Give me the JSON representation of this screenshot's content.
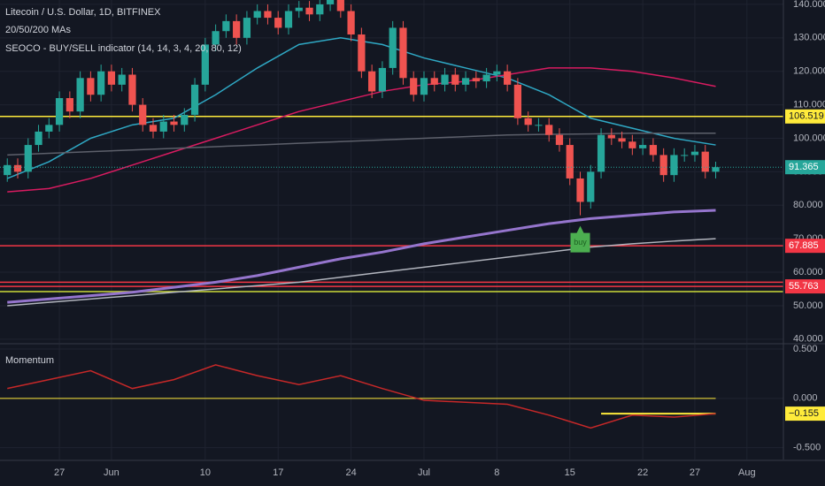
{
  "chart_data": [
    {
      "type": "candlestick",
      "title": "Litecoin / U.S. Dollar, 1D, BITFINEX",
      "indicators": [
        "20/50/200 MAs",
        "SEOCO - BUY/SELL indicator (14, 14, 3, 4, 20, 80, 12)"
      ],
      "x": [
        0,
        1,
        2,
        3,
        4,
        5,
        6,
        7,
        8,
        9,
        10,
        11,
        12,
        13,
        14,
        15,
        16,
        17,
        18,
        19,
        20,
        21,
        22,
        23,
        24,
        25,
        26,
        27,
        28,
        29,
        30,
        31,
        32,
        33,
        34,
        35,
        36,
        37,
        38,
        39,
        40,
        41,
        42,
        43,
        44,
        45,
        46,
        47,
        48,
        49,
        50,
        51,
        52,
        53,
        54,
        55,
        56,
        57,
        58,
        59,
        60,
        61,
        62,
        63,
        64,
        65,
        66,
        67,
        68
      ],
      "open": [
        89,
        92,
        90,
        98,
        102,
        104,
        112,
        108,
        118,
        113,
        120,
        116,
        119,
        110,
        104,
        102,
        105,
        104,
        107,
        116,
        128,
        132,
        135,
        130,
        136,
        138,
        136,
        133,
        138,
        139,
        137,
        140,
        142,
        138,
        131,
        120,
        114,
        121,
        133,
        118,
        113,
        118,
        116,
        119,
        116,
        118,
        117,
        119,
        120,
        116,
        106,
        104,
        104,
        101,
        98,
        88,
        81,
        90,
        101,
        100,
        99,
        97,
        98,
        95,
        89,
        95,
        95,
        96,
        90
      ],
      "high": [
        94,
        94,
        100,
        104,
        106,
        114,
        114,
        120,
        120,
        122,
        122,
        121,
        121,
        112,
        106,
        107,
        107,
        109,
        118,
        130,
        134,
        137,
        137,
        138,
        140,
        140,
        138,
        140,
        141,
        141,
        142,
        144,
        144,
        140,
        133,
        122,
        123,
        135,
        135,
        120,
        120,
        120,
        121,
        121,
        120,
        120,
        121,
        122,
        122,
        118,
        108,
        106,
        106,
        103,
        100,
        90,
        92,
        103,
        103,
        102,
        101,
        100,
        100,
        97,
        97,
        97,
        98,
        98,
        93
      ],
      "low": [
        87,
        88,
        88,
        96,
        100,
        102,
        106,
        106,
        111,
        111,
        114,
        114,
        108,
        102,
        100,
        100,
        102,
        102,
        105,
        114,
        126,
        130,
        128,
        128,
        134,
        134,
        131,
        131,
        136,
        135,
        135,
        138,
        136,
        129,
        118,
        112,
        112,
        119,
        116,
        111,
        111,
        114,
        114,
        114,
        114,
        115,
        115,
        117,
        114,
        104,
        102,
        102,
        99,
        96,
        86,
        77,
        79,
        88,
        98,
        97,
        95,
        95,
        93,
        87,
        87,
        93,
        93,
        88,
        88
      ],
      "close": [
        92,
        90,
        98,
        102,
        104,
        112,
        108,
        118,
        113,
        120,
        116,
        119,
        110,
        104,
        102,
        105,
        104,
        107,
        116,
        128,
        132,
        135,
        130,
        136,
        138,
        136,
        133,
        138,
        139,
        137,
        140,
        142,
        138,
        131,
        120,
        114,
        121,
        133,
        118,
        113,
        118,
        116,
        119,
        116,
        118,
        117,
        119,
        120,
        116,
        106,
        104,
        104,
        101,
        98,
        88,
        81,
        90,
        101,
        100,
        99,
        97,
        98,
        95,
        89,
        95,
        95,
        96,
        90,
        91.365
      ],
      "up_color": "#26a69a",
      "down_color": "#ef5350",
      "xlim": [
        -0.7,
        74.5
      ],
      "xticks": [
        {
          "value": 5,
          "label": "27"
        },
        {
          "value": 10,
          "label": "Jun"
        },
        {
          "value": 19,
          "label": "10"
        },
        {
          "value": 26,
          "label": "17"
        },
        {
          "value": 33,
          "label": "24"
        },
        {
          "value": 40,
          "label": "Jul"
        },
        {
          "value": 47,
          "label": "8"
        },
        {
          "value": 54,
          "label": "15"
        },
        {
          "value": 61,
          "label": "22"
        },
        {
          "value": 66,
          "label": "27"
        },
        {
          "value": 71,
          "label": "Aug"
        }
      ],
      "ylim": [
        38.9,
        141.3
      ],
      "yticks": [
        {
          "value": 40,
          "label": "40.000"
        },
        {
          "value": 50,
          "label": "50.000"
        },
        {
          "value": 60,
          "label": "60.000"
        },
        {
          "value": 70,
          "label": "70.000"
        },
        {
          "value": 80,
          "label": "80.000"
        },
        {
          "value": 90,
          "label": "90.000"
        },
        {
          "value": 100,
          "label": "100.000"
        },
        {
          "value": 110,
          "label": "110.000"
        },
        {
          "value": 120,
          "label": "120.000"
        },
        {
          "value": 130,
          "label": "130.000"
        },
        {
          "value": 140,
          "label": "140.000"
        }
      ],
      "lines": [
        {
          "color": "#2fa8c4",
          "x": [
            0,
            4,
            8,
            12,
            16,
            20,
            24,
            28,
            32,
            36,
            40,
            44,
            48,
            52,
            56,
            60,
            64,
            68
          ],
          "values": [
            88,
            93,
            100,
            104,
            106,
            113,
            121,
            128,
            130,
            128,
            124,
            121,
            118,
            113,
            106,
            103,
            100,
            98
          ]
        },
        {
          "color": "#d81b60",
          "x": [
            0,
            4,
            8,
            12,
            16,
            20,
            24,
            28,
            32,
            36,
            40,
            44,
            48,
            52,
            56,
            60,
            64,
            68
          ],
          "values": [
            84,
            85,
            88,
            92,
            96,
            100,
            104,
            108,
            111,
            114,
            116,
            117,
            119,
            121,
            121,
            120,
            118,
            115.5
          ]
        },
        {
          "color": "#5d606b",
          "x": [
            0,
            4,
            8,
            12,
            16,
            20,
            24,
            28,
            32,
            36,
            40,
            44,
            48,
            52,
            56,
            60,
            64,
            68
          ],
          "values": [
            95,
            95.5,
            96,
            96.5,
            97,
            97.5,
            98,
            98.5,
            99,
            99.5,
            100,
            100.5,
            101,
            101.2,
            101.3,
            101.5,
            101.5,
            101.5
          ]
        },
        {
          "color": "#9575cd",
          "x": [
            0,
            4,
            8,
            12,
            16,
            20,
            24,
            28,
            32,
            36,
            40,
            44,
            48,
            52,
            56,
            60,
            64,
            68
          ],
          "values": [
            51,
            52,
            53,
            54,
            55.5,
            57,
            59,
            61.5,
            64,
            66,
            68.5,
            70.5,
            72.5,
            74.5,
            76,
            77,
            78,
            78.5
          ]
        },
        {
          "color": "#b2b5be",
          "x": [
            0,
            4,
            8,
            12,
            16,
            20,
            24,
            28,
            32,
            36,
            40,
            44,
            48,
            52,
            56,
            60,
            64,
            68
          ],
          "values": [
            50,
            51,
            52,
            53,
            54,
            55,
            56,
            57,
            58.5,
            60,
            61.5,
            63,
            64.5,
            66,
            67.5,
            68.5,
            69.3,
            70
          ]
        }
      ],
      "line_widths": [
        1.5,
        1.5,
        1.5,
        3,
        1.5
      ],
      "levels": [
        {
          "value": 106.519,
          "color": "#ffeb3b",
          "tagged": true
        },
        {
          "value": 67.885,
          "color": "#f23645",
          "tagged": true
        },
        {
          "value": 57,
          "color": "#f23645"
        },
        {
          "value": 55.763,
          "color": "#f23645",
          "tagged": true
        },
        {
          "value": 54.2,
          "color": "#cddc39"
        }
      ],
      "signals": [
        {
          "text": "buy",
          "x": 55,
          "color": "#4caf50"
        }
      ]
    },
    {
      "type": "line",
      "title": "Momentum",
      "x": [
        0,
        4,
        8,
        12,
        16,
        20,
        24,
        28,
        32,
        36,
        40,
        44,
        48,
        52,
        56,
        60,
        64,
        68
      ],
      "values": [
        0.1,
        0.19,
        0.28,
        0.1,
        0.19,
        0.34,
        0.23,
        0.14,
        0.23,
        0.1,
        -0.02,
        -0.04,
        -0.06,
        -0.17,
        -0.3,
        -0.17,
        -0.19,
        -0.155
      ],
      "color": "#c62828",
      "xlim": [
        -0.7,
        74.5
      ],
      "ylim": [
        -0.62,
        0.545
      ],
      "yticks": [
        {
          "value": -0.5,
          "label": "-0.500"
        },
        {
          "value": 0,
          "label": "0.000"
        },
        {
          "value": 0.5,
          "label": "0.500"
        }
      ],
      "levels": [
        {
          "value": 0,
          "color": "#ffeb3b"
        },
        {
          "value": -0.155,
          "label": "−0.155",
          "color": "#ffeb3b",
          "from": 57
        }
      ]
    }
  ]
}
